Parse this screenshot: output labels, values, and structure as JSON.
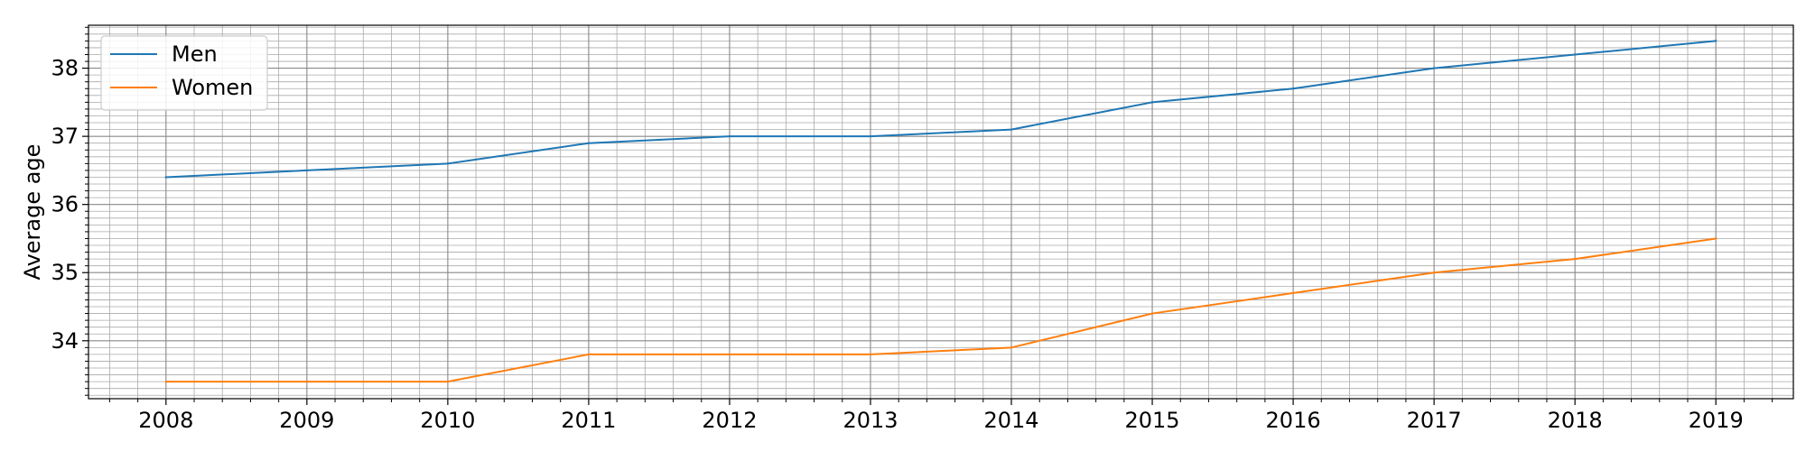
{
  "chart_data": {
    "type": "line",
    "title": "",
    "xlabel": "",
    "ylabel": "Average age",
    "x": [
      2008,
      2009,
      2010,
      2011,
      2012,
      2013,
      2014,
      2015,
      2016,
      2017,
      2018,
      2019
    ],
    "xlim": [
      2007.45,
      2019.55
    ],
    "ylim": [
      33.15,
      38.63
    ],
    "yticks": [
      34,
      35,
      36,
      37,
      38
    ],
    "grid": "major and minor",
    "legend": "top-left",
    "series": [
      {
        "name": "Men",
        "color": "#1f77b4",
        "values": [
          36.4,
          36.5,
          36.6,
          36.9,
          37.0,
          37.0,
          37.1,
          37.5,
          37.7,
          38.0,
          38.2,
          38.4
        ]
      },
      {
        "name": "Women",
        "color": "#ff7f0e",
        "values": [
          33.4,
          33.4,
          33.4,
          33.8,
          33.8,
          33.8,
          33.9,
          34.4,
          34.7,
          35.0,
          35.2,
          35.5
        ]
      }
    ]
  }
}
